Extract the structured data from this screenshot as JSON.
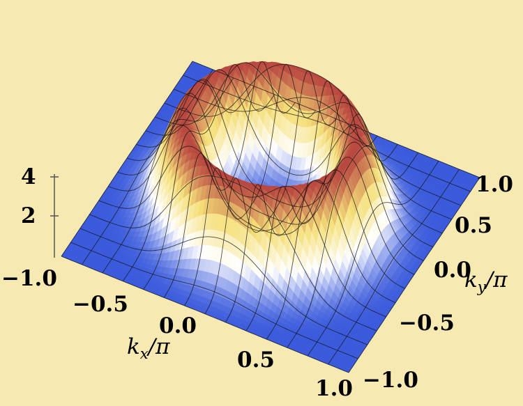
{
  "chart_data": {
    "type": "surface3d",
    "x_label": {
      "main": "k",
      "sub": "x",
      "tail": "/π"
    },
    "y_label": {
      "main": "k",
      "sub": "y",
      "tail": "/π"
    },
    "x_ticks": [
      -1.0,
      -0.5,
      0.0,
      0.5,
      1.0
    ],
    "y_ticks": [
      -1.0,
      -0.5,
      0.0,
      0.5,
      1.0
    ],
    "z_ticks": [
      2,
      4
    ],
    "x_tick_labels": [
      "−1.0",
      "−0.5",
      "0.0",
      "0.5",
      "1.0"
    ],
    "y_tick_labels": [
      "−1.0",
      "−0.5",
      "0.0",
      "0.5",
      "1.0"
    ],
    "z_tick_labels": [
      "2",
      "4"
    ],
    "xlim": [
      -1.0,
      1.0
    ],
    "ylim": [
      -1.0,
      1.0
    ],
    "zlim": [
      0,
      5
    ],
    "surface": {
      "description_values": "ring-shaped ridge in (kx, ky) with peak height about 4.7 at |k|/π ≈ 0.55, near zero at the corners",
      "ridge_radius": 0.55,
      "peak_height": 4.7,
      "base_height": 0.0
    },
    "colormap": [
      "#3b5bdc",
      "#ffffff",
      "#f5e07a",
      "#b8453f"
    ],
    "colors": {
      "background": "#f6eab2",
      "mesh": "#111111"
    }
  }
}
